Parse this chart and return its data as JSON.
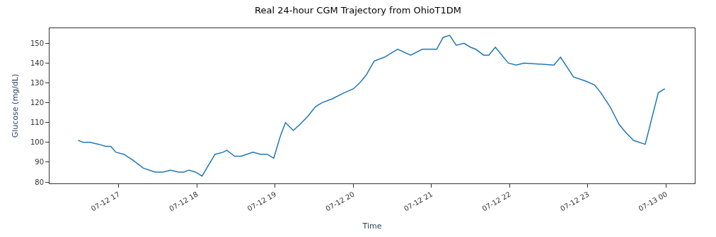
{
  "chart_data": {
    "type": "line",
    "title": "Real 24-hour CGM Trajectory from OhioT1DM",
    "xlabel": "Time",
    "ylabel": "Glucose (mg/dL)",
    "x": [
      "--07-12T16:29",
      "--07-12T16:33",
      "--07-12T16:38",
      "--07-12T16:45",
      "--07-12T16:50",
      "--07-12T16:54",
      "--07-12T16:58",
      "--07-12T17:04",
      "--07-12T17:11",
      "--07-12T17:19",
      "--07-12T17:28",
      "--07-12T17:34",
      "--07-12T17:40",
      "--07-12T17:46",
      "--07-12T17:50",
      "--07-12T17:54",
      "--07-12T17:59",
      "--07-12T18:04",
      "--07-12T18:14",
      "--07-12T18:20",
      "--07-12T18:23",
      "--07-12T18:29",
      "--07-12T18:34",
      "--07-12T18:43",
      "--07-12T18:49",
      "--07-12T18:54",
      "--07-12T18:59",
      "--07-12T19:04",
      "--07-12T19:08",
      "--07-12T19:14",
      "--07-12T19:19",
      "--07-12T19:25",
      "--07-12T19:31",
      "--07-12T19:36",
      "--07-12T19:44",
      "--07-12T19:53",
      "--07-12T20:00",
      "--07-12T20:05",
      "--07-12T20:10",
      "--07-12T20:16",
      "--07-12T20:24",
      "--07-12T20:34",
      "--07-12T20:44",
      "--07-12T20:53",
      "--07-12T21:04",
      "--07-12T21:09",
      "--07-12T21:14",
      "--07-12T21:19",
      "--07-12T21:25",
      "--07-12T21:30",
      "--07-12T21:34",
      "--07-12T21:40",
      "--07-12T21:44",
      "--07-12T21:49",
      "--07-12T21:59",
      "--07-12T22:05",
      "--07-12T22:11",
      "--07-12T22:34",
      "--07-12T22:39",
      "--07-12T22:49",
      "--07-12T22:58",
      "--07-12T23:05",
      "--07-12T23:10",
      "--07-12T23:17",
      "--07-12T23:24",
      "--07-12T23:29",
      "--07-12T23:35",
      "--07-12T23:44",
      "--07-12T23:54",
      "--07-12T23:59"
    ],
    "series": [
      {
        "color": "#1f77b4",
        "values": [
          101,
          100,
          100,
          99,
          98,
          98,
          95,
          94,
          91,
          87,
          85,
          85,
          86,
          85,
          85,
          86,
          85,
          83,
          94,
          95,
          96,
          93,
          93,
          95,
          94,
          94,
          92,
          103,
          110,
          106,
          109,
          113,
          118,
          120,
          122,
          125,
          127,
          130,
          134,
          141,
          143,
          147,
          144,
          147,
          147,
          153,
          154,
          149,
          150,
          148,
          147,
          144,
          144,
          148,
          140,
          139,
          140,
          139,
          143,
          133,
          131,
          129,
          125,
          118,
          109,
          105,
          101,
          99,
          125,
          127
        ]
      }
    ],
    "xlim": [
      "--07-12T16:07",
      "--07-13T00:22"
    ],
    "ylim": [
      79.3,
      157.6
    ],
    "xticks": [
      {
        "value": "--07-12T17:00",
        "label": "07-12 17"
      },
      {
        "value": "--07-12T18:00",
        "label": "07-12 18"
      },
      {
        "value": "--07-12T19:00",
        "label": "07-12 19"
      },
      {
        "value": "--07-12T20:00",
        "label": "07-12 20"
      },
      {
        "value": "--07-12T21:00",
        "label": "07-12 21"
      },
      {
        "value": "--07-12T22:00",
        "label": "07-12 22"
      },
      {
        "value": "--07-12T23:00",
        "label": "07-12 23"
      },
      {
        "value": "--07-13T00:00",
        "label": "07-13 00"
      }
    ],
    "yticks": [
      80,
      90,
      100,
      110,
      120,
      130,
      140,
      150
    ],
    "marker": "none",
    "line_style": "solid"
  }
}
